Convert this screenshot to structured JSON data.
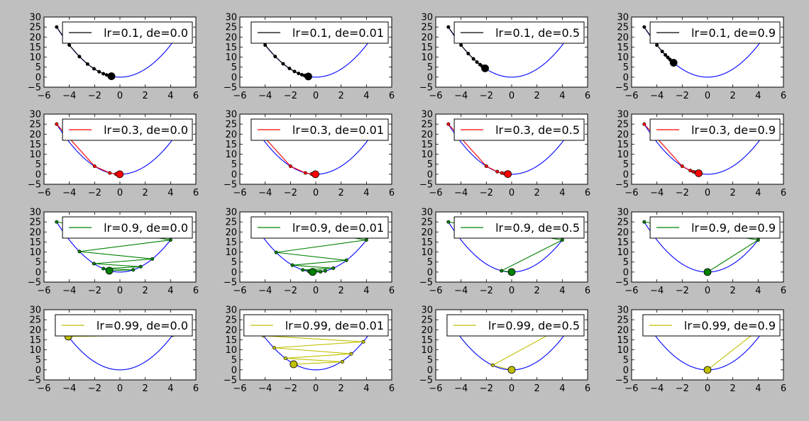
{
  "figure": {
    "background": "#bfbfbf",
    "grid": false,
    "curve_color": "#0000ff",
    "row_colors": [
      "#000000",
      "#ff0000",
      "#008000",
      "#bfbf00"
    ]
  },
  "chart_data": [
    {
      "type": "line",
      "legend": "lr=0.1, de=0.0",
      "legend_position": "top-right",
      "xlim": [
        -6,
        6
      ],
      "ylim": [
        -5,
        30
      ],
      "xticks": [
        "−6",
        "−4",
        "−2",
        "0",
        "2",
        "4",
        "6"
      ],
      "yticks": [
        "−5",
        "0",
        "5",
        "10",
        "15",
        "20",
        "25",
        "30"
      ],
      "curve": "y = x^2",
      "series": [
        {
          "name": "lr=0.1, de=0.0",
          "color": "#000000",
          "x": [
            -5,
            -4,
            -3.2,
            -2.56,
            -2.05,
            -1.64,
            -1.31,
            -1.05,
            -0.84,
            -0.67
          ],
          "y": [
            25,
            16,
            10.24,
            6.55,
            4.19,
            2.68,
            1.72,
            1.1,
            0.7,
            0.45
          ]
        }
      ]
    },
    {
      "type": "line",
      "legend": "lr=0.1, de=0.01",
      "legend_position": "top-right",
      "xlim": [
        -6,
        6
      ],
      "ylim": [
        -5,
        30
      ],
      "xticks": [
        "−6",
        "−4",
        "−2",
        "0",
        "2",
        "4",
        "6"
      ],
      "yticks": [
        "−5",
        "0",
        "5",
        "10",
        "15",
        "20",
        "25",
        "30"
      ],
      "curve": "y = x^2",
      "series": [
        {
          "name": "lr=0.1, de=0.01",
          "color": "#000000",
          "x": [
            -5,
            -4,
            -3.21,
            -2.58,
            -2.08,
            -1.68,
            -1.36,
            -1.1,
            -0.89,
            -0.72,
            -0.59
          ],
          "y": [
            25,
            16,
            10.3,
            6.66,
            4.33,
            2.82,
            1.85,
            1.21,
            0.79,
            0.52,
            0.35
          ]
        }
      ]
    },
    {
      "type": "line",
      "legend": "lr=0.1, de=0.5",
      "legend_position": "top-right",
      "xlim": [
        -6,
        6
      ],
      "ylim": [
        -5,
        30
      ],
      "xticks": [
        "−6",
        "−4",
        "−2",
        "0",
        "2",
        "4",
        "6"
      ],
      "yticks": [
        "−5",
        "0",
        "5",
        "10",
        "15",
        "20",
        "25",
        "30"
      ],
      "curve": "y = x^2",
      "series": [
        {
          "name": "lr=0.1, de=0.5",
          "color": "#000000",
          "x": [
            -5,
            -4,
            -3.43,
            -3.02,
            -2.74,
            -2.5,
            -2.33,
            -2.2,
            -2.1
          ],
          "y": [
            25,
            16,
            11.76,
            9.12,
            7.51,
            6.25,
            5.43,
            4.84,
            4.41
          ]
        }
      ]
    },
    {
      "type": "line",
      "legend": "lr=0.1, de=0.9",
      "legend_position": "top-right",
      "xlim": [
        -6,
        6
      ],
      "ylim": [
        -5,
        30
      ],
      "xticks": [
        "−6",
        "−4",
        "−2",
        "0",
        "2",
        "4",
        "6"
      ],
      "yticks": [
        "−5",
        "0",
        "5",
        "10",
        "15",
        "20",
        "25",
        "30"
      ],
      "curve": "y = x^2",
      "series": [
        {
          "name": "lr=0.1, de=0.9",
          "color": "#000000",
          "x": [
            -5,
            -4,
            -3.58,
            -3.33,
            -3.14,
            -2.98,
            -2.86,
            -2.76,
            -2.68
          ],
          "y": [
            25,
            16,
            12.8,
            11.1,
            9.86,
            8.88,
            8.18,
            7.62,
            7.18
          ]
        }
      ]
    },
    {
      "type": "line",
      "legend": "lr=0.3, de=0.0",
      "legend_position": "top-right",
      "xlim": [
        -6,
        6
      ],
      "ylim": [
        -5,
        30
      ],
      "xticks": [
        "−6",
        "−4",
        "−2",
        "0",
        "2",
        "4",
        "6"
      ],
      "yticks": [
        "−5",
        "0",
        "5",
        "10",
        "15",
        "20",
        "25",
        "30"
      ],
      "curve": "y = x^2",
      "series": [
        {
          "name": "lr=0.3, de=0.0",
          "color": "#ff0000",
          "x": [
            -5,
            -2,
            -0.8,
            -0.32,
            -0.13,
            -0.05,
            -0.02
          ],
          "y": [
            25,
            4,
            0.64,
            0.1,
            0.02,
            0,
            0
          ]
        }
      ]
    },
    {
      "type": "line",
      "legend": "lr=0.3, de=0.01",
      "legend_position": "top-right",
      "xlim": [
        -6,
        6
      ],
      "ylim": [
        -5,
        30
      ],
      "xticks": [
        "−6",
        "−4",
        "−2",
        "0",
        "2",
        "4",
        "6"
      ],
      "yticks": [
        "−5",
        "0",
        "5",
        "10",
        "15",
        "20",
        "25",
        "30"
      ],
      "curve": "y = x^2",
      "series": [
        {
          "name": "lr=0.3, de=0.01",
          "color": "#ff0000",
          "x": [
            -5,
            -2,
            -0.82,
            -0.34,
            -0.14,
            -0.06,
            -0.03
          ],
          "y": [
            25,
            4,
            0.67,
            0.12,
            0.02,
            0,
            0
          ]
        }
      ]
    },
    {
      "type": "line",
      "legend": "lr=0.3, de=0.5",
      "legend_position": "top-right",
      "xlim": [
        -6,
        6
      ],
      "ylim": [
        -5,
        30
      ],
      "xticks": [
        "−6",
        "−4",
        "−2",
        "0",
        "2",
        "4",
        "6"
      ],
      "yticks": [
        "−5",
        "0",
        "5",
        "10",
        "15",
        "20",
        "25",
        "30"
      ],
      "curve": "y = x^2",
      "series": [
        {
          "name": "lr=0.3, de=0.5",
          "color": "#ff0000",
          "x": [
            -5,
            -2,
            -1.14,
            -0.78,
            -0.58,
            -0.46,
            -0.38,
            -0.3
          ],
          "y": [
            25,
            4,
            1.3,
            0.61,
            0.34,
            0.21,
            0.14,
            0.09
          ]
        }
      ]
    },
    {
      "type": "line",
      "legend": "lr=0.3, de=0.9",
      "legend_position": "top-right",
      "xlim": [
        -6,
        6
      ],
      "ylim": [
        -5,
        30
      ],
      "xticks": [
        "−6",
        "−4",
        "−2",
        "0",
        "2",
        "4",
        "6"
      ],
      "yticks": [
        "−5",
        "0",
        "5",
        "10",
        "15",
        "20",
        "25",
        "30"
      ],
      "curve": "y = x^2",
      "series": [
        {
          "name": "lr=0.3, de=0.9",
          "color": "#ff0000",
          "x": [
            -5,
            -2,
            -1.36,
            -1.12,
            -0.98,
            -0.88,
            -0.8,
            -0.75,
            -0.7
          ],
          "y": [
            25,
            4,
            1.85,
            1.25,
            0.96,
            0.77,
            0.64,
            0.56,
            0.49
          ]
        }
      ]
    },
    {
      "type": "line",
      "legend": "lr=0.9, de=0.0",
      "legend_position": "top-right",
      "xlim": [
        -6,
        6
      ],
      "ylim": [
        -5,
        30
      ],
      "xticks": [
        "−6",
        "−4",
        "−2",
        "0",
        "2",
        "4",
        "6"
      ],
      "yticks": [
        "−5",
        "0",
        "5",
        "10",
        "15",
        "20",
        "25",
        "30"
      ],
      "curve": "y = x^2",
      "series": [
        {
          "name": "lr=0.9, de=0.0",
          "color": "#008000",
          "x": [
            -5,
            4,
            -3.2,
            2.56,
            -2.05,
            1.64,
            -1.31,
            1.05,
            -0.84
          ],
          "y": [
            25,
            16,
            10.24,
            6.55,
            4.19,
            2.68,
            1.72,
            1.1,
            0.7
          ]
        }
      ]
    },
    {
      "type": "line",
      "legend": "lr=0.9, de=0.01",
      "legend_position": "top-right",
      "xlim": [
        -6,
        6
      ],
      "ylim": [
        -5,
        30
      ],
      "xticks": [
        "−6",
        "−4",
        "−2",
        "0",
        "2",
        "4",
        "6"
      ],
      "yticks": [
        "−5",
        "0",
        "5",
        "10",
        "15",
        "20",
        "25",
        "30"
      ],
      "curve": "y = x^2",
      "series": [
        {
          "name": "lr=0.9, de=0.01",
          "color": "#008000",
          "x": [
            -5,
            4,
            -3.13,
            2.42,
            -1.85,
            1.39,
            -1.03,
            0.75,
            -0.53,
            0.37,
            -0.25
          ],
          "y": [
            25,
            16,
            9.8,
            5.86,
            3.42,
            1.93,
            1.06,
            0.56,
            0.28,
            0.14,
            0.06
          ]
        }
      ]
    },
    {
      "type": "line",
      "legend": "lr=0.9, de=0.5",
      "legend_position": "top-right",
      "xlim": [
        -6,
        6
      ],
      "ylim": [
        -5,
        30
      ],
      "xticks": [
        "−6",
        "−4",
        "−2",
        "0",
        "2",
        "4",
        "6"
      ],
      "yticks": [
        "−5",
        "0",
        "5",
        "10",
        "15",
        "20",
        "25",
        "30"
      ],
      "curve": "y = x^2",
      "series": [
        {
          "name": "lr=0.9, de=0.5",
          "color": "#008000",
          "x": [
            -5,
            4,
            -0.8,
            0
          ],
          "y": [
            25,
            16,
            0.64,
            0
          ]
        }
      ]
    },
    {
      "type": "line",
      "legend": "lr=0.9, de=0.9",
      "legend_position": "top-right",
      "xlim": [
        -6,
        6
      ],
      "ylim": [
        -5,
        30
      ],
      "xticks": [
        "−6",
        "−4",
        "−2",
        "0",
        "2",
        "4",
        "6"
      ],
      "yticks": [
        "−5",
        "0",
        "5",
        "10",
        "15",
        "20",
        "25",
        "30"
      ],
      "curve": "y = x^2",
      "series": [
        {
          "name": "lr=0.9, de=0.9",
          "color": "#008000",
          "x": [
            -5,
            4,
            0
          ],
          "y": [
            25,
            16,
            0
          ]
        }
      ]
    },
    {
      "type": "line",
      "legend": "lr=0.99, de=0.0",
      "legend_position": "top-right",
      "xlim": [
        -6,
        6
      ],
      "ylim": [
        -5,
        30
      ],
      "xticks": [
        "−6",
        "−4",
        "−2",
        "0",
        "2",
        "4",
        "6"
      ],
      "yticks": [
        "−5",
        "0",
        "5",
        "10",
        "15",
        "20",
        "25",
        "30"
      ],
      "curve": "y = x^2",
      "series": [
        {
          "name": "lr=0.99, de=0.0",
          "color": "#bfbf00",
          "x": [
            -5,
            4.9,
            -4.8,
            4.7,
            -4.61,
            4.51,
            -4.42,
            4.33,
            -4.25,
            4.16,
            -4.08
          ],
          "y": [
            25,
            24,
            23.04,
            22.13,
            21.25,
            20.4,
            19.59,
            18.8,
            18.04,
            17.34,
            16.65
          ]
        }
      ]
    },
    {
      "type": "line",
      "legend": "lr=0.99, de=0.01",
      "legend_position": "top-right",
      "xlim": [
        -6,
        6
      ],
      "ylim": [
        -5,
        30
      ],
      "xticks": [
        "−6",
        "−4",
        "−2",
        "0",
        "2",
        "4",
        "6"
      ],
      "yticks": [
        "−5",
        "0",
        "5",
        "10",
        "15",
        "20",
        "25",
        "30"
      ],
      "curve": "y = x^2",
      "series": [
        {
          "name": "lr=0.99, de=0.01",
          "color": "#bfbf00",
          "x": [
            -5,
            4.8,
            -4.6,
            4.3,
            -4.12,
            3.76,
            -3.29,
            2.8,
            -2.4,
            2.1,
            -1.75
          ],
          "y": [
            25,
            23,
            21,
            18.5,
            17,
            14,
            11,
            8,
            5.8,
            4,
            2.8
          ]
        }
      ]
    },
    {
      "type": "line",
      "legend": "lr=0.99, de=0.5",
      "legend_position": "top-right",
      "xlim": [
        -6,
        6
      ],
      "ylim": [
        -5,
        30
      ],
      "xticks": [
        "−6",
        "−4",
        "−2",
        "0",
        "2",
        "4",
        "6"
      ],
      "yticks": [
        "−5",
        "0",
        "5",
        "10",
        "15",
        "20",
        "25",
        "30"
      ],
      "curve": "y = x^2",
      "series": [
        {
          "name": "lr=0.99, de=0.5",
          "color": "#bfbf00",
          "x": [
            -5,
            4.95,
            -1.5,
            0
          ],
          "y": [
            25,
            24.5,
            2.3,
            0
          ]
        }
      ]
    },
    {
      "type": "line",
      "legend": "lr=0.99, de=0.9",
      "legend_position": "top-right",
      "xlim": [
        -6,
        6
      ],
      "ylim": [
        -5,
        30
      ],
      "xticks": [
        "−6",
        "−4",
        "−2",
        "0",
        "2",
        "4",
        "6"
      ],
      "yticks": [
        "−5",
        "0",
        "5",
        "10",
        "15",
        "20",
        "25",
        "30"
      ],
      "curve": "y = x^2",
      "series": [
        {
          "name": "lr=0.99, de=0.9",
          "color": "#bfbf00",
          "x": [
            -5,
            4.95,
            0
          ],
          "y": [
            25,
            24.5,
            0
          ]
        }
      ]
    }
  ]
}
